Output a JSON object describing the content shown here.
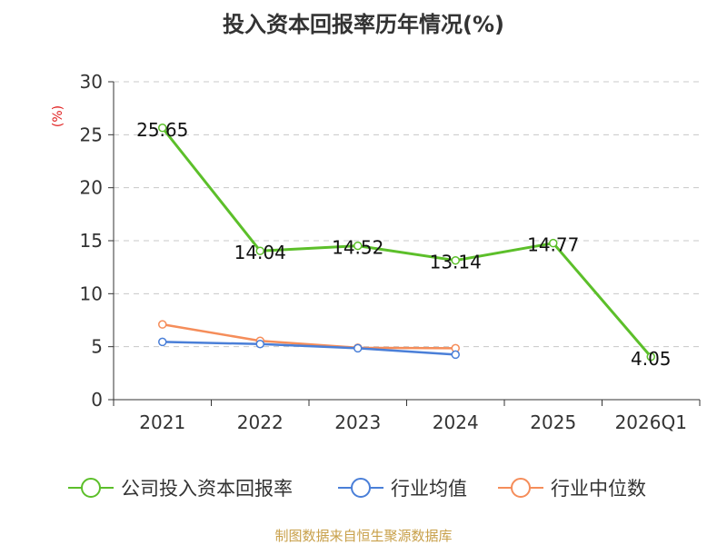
{
  "chart_data": {
    "type": "line",
    "title": "投入资本回报率历年情况(%)",
    "ylabel": "(%)",
    "xlabel": "",
    "categories": [
      "2021",
      "2022",
      "2023",
      "2024",
      "2025",
      "2026Q1"
    ],
    "ylim": [
      0,
      30
    ],
    "yticks": [
      0,
      5,
      10,
      15,
      20,
      25,
      30
    ],
    "grid": true,
    "legend_position": "bottom",
    "series": [
      {
        "name": "公司投入资本回报率",
        "color": "#5cbf2a",
        "values": [
          25.65,
          14.04,
          14.52,
          13.14,
          14.77,
          4.05
        ],
        "show_labels": true
      },
      {
        "name": "行业均值",
        "color": "#4a7fd8",
        "values": [
          5.45,
          5.25,
          4.85,
          4.25,
          null,
          null
        ],
        "show_labels": false
      },
      {
        "name": "行业中位数",
        "color": "#f58d5a",
        "values": [
          7.1,
          5.55,
          4.9,
          4.85,
          null,
          null
        ],
        "show_labels": false
      }
    ],
    "data_labels": [
      "25.65",
      "14.04",
      "14.52",
      "13.14",
      "14.77",
      "4.05"
    ],
    "source": "制图数据来自恒生聚源数据库"
  }
}
